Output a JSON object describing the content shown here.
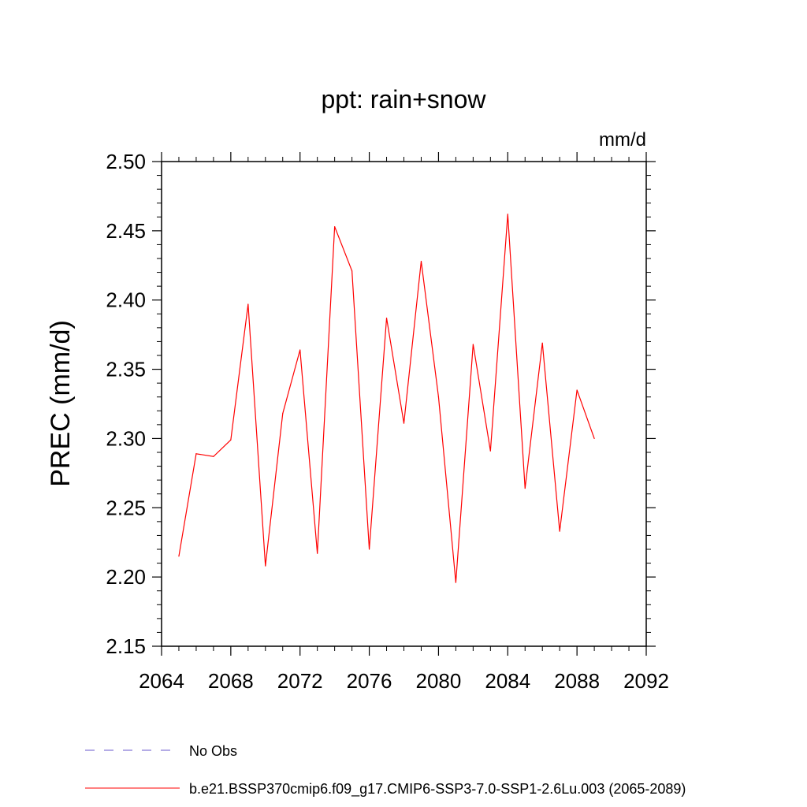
{
  "chart_data": {
    "type": "line",
    "title": "ppt: rain+snow",
    "units_label": "mm/d",
    "ylabel": "PREC  (mm/d)",
    "xlabel": "",
    "xlim": [
      2064,
      2092
    ],
    "ylim": [
      2.15,
      2.5
    ],
    "xticks": [
      2064,
      2068,
      2072,
      2076,
      2080,
      2084,
      2088,
      2092
    ],
    "xtick_labels": [
      "2064",
      "2068",
      "2072",
      "2076",
      "2080",
      "2084",
      "2088",
      "2092"
    ],
    "yticks": [
      2.15,
      2.2,
      2.25,
      2.3,
      2.35,
      2.4,
      2.45,
      2.5
    ],
    "ytick_labels": [
      "2.15",
      "2.20",
      "2.25",
      "2.30",
      "2.35",
      "2.40",
      "2.45",
      "2.50"
    ],
    "series": [
      {
        "name": "b.e21.BSSP370cmip6.f09_g17.CMIP6-SSP3-7.0-SSP1-2.6Lu.003 (2065-2089)",
        "color": "#ff0000",
        "x": [
          2065,
          2066,
          2067,
          2068,
          2069,
          2070,
          2071,
          2072,
          2073,
          2074,
          2075,
          2076,
          2077,
          2078,
          2079,
          2080,
          2081,
          2082,
          2083,
          2084,
          2085,
          2086,
          2087,
          2088,
          2089
        ],
        "values": [
          2.215,
          2.289,
          2.287,
          2.299,
          2.397,
          2.208,
          2.318,
          2.364,
          2.217,
          2.453,
          2.421,
          2.22,
          2.387,
          2.311,
          2.428,
          2.33,
          2.196,
          2.368,
          2.291,
          2.462,
          2.264,
          2.369,
          2.233,
          2.335,
          2.3
        ]
      }
    ],
    "legend": [
      {
        "label": "No Obs",
        "style": "dashed",
        "color": "#6a5acd"
      },
      {
        "label": "b.e21.BSSP370cmip6.f09_g17.CMIP6-SSP3-7.0-SSP1-2.6Lu.003 (2065-2089)",
        "style": "solid",
        "color": "#ff0000"
      }
    ],
    "legend_position": "bottom-left",
    "grid": false
  }
}
